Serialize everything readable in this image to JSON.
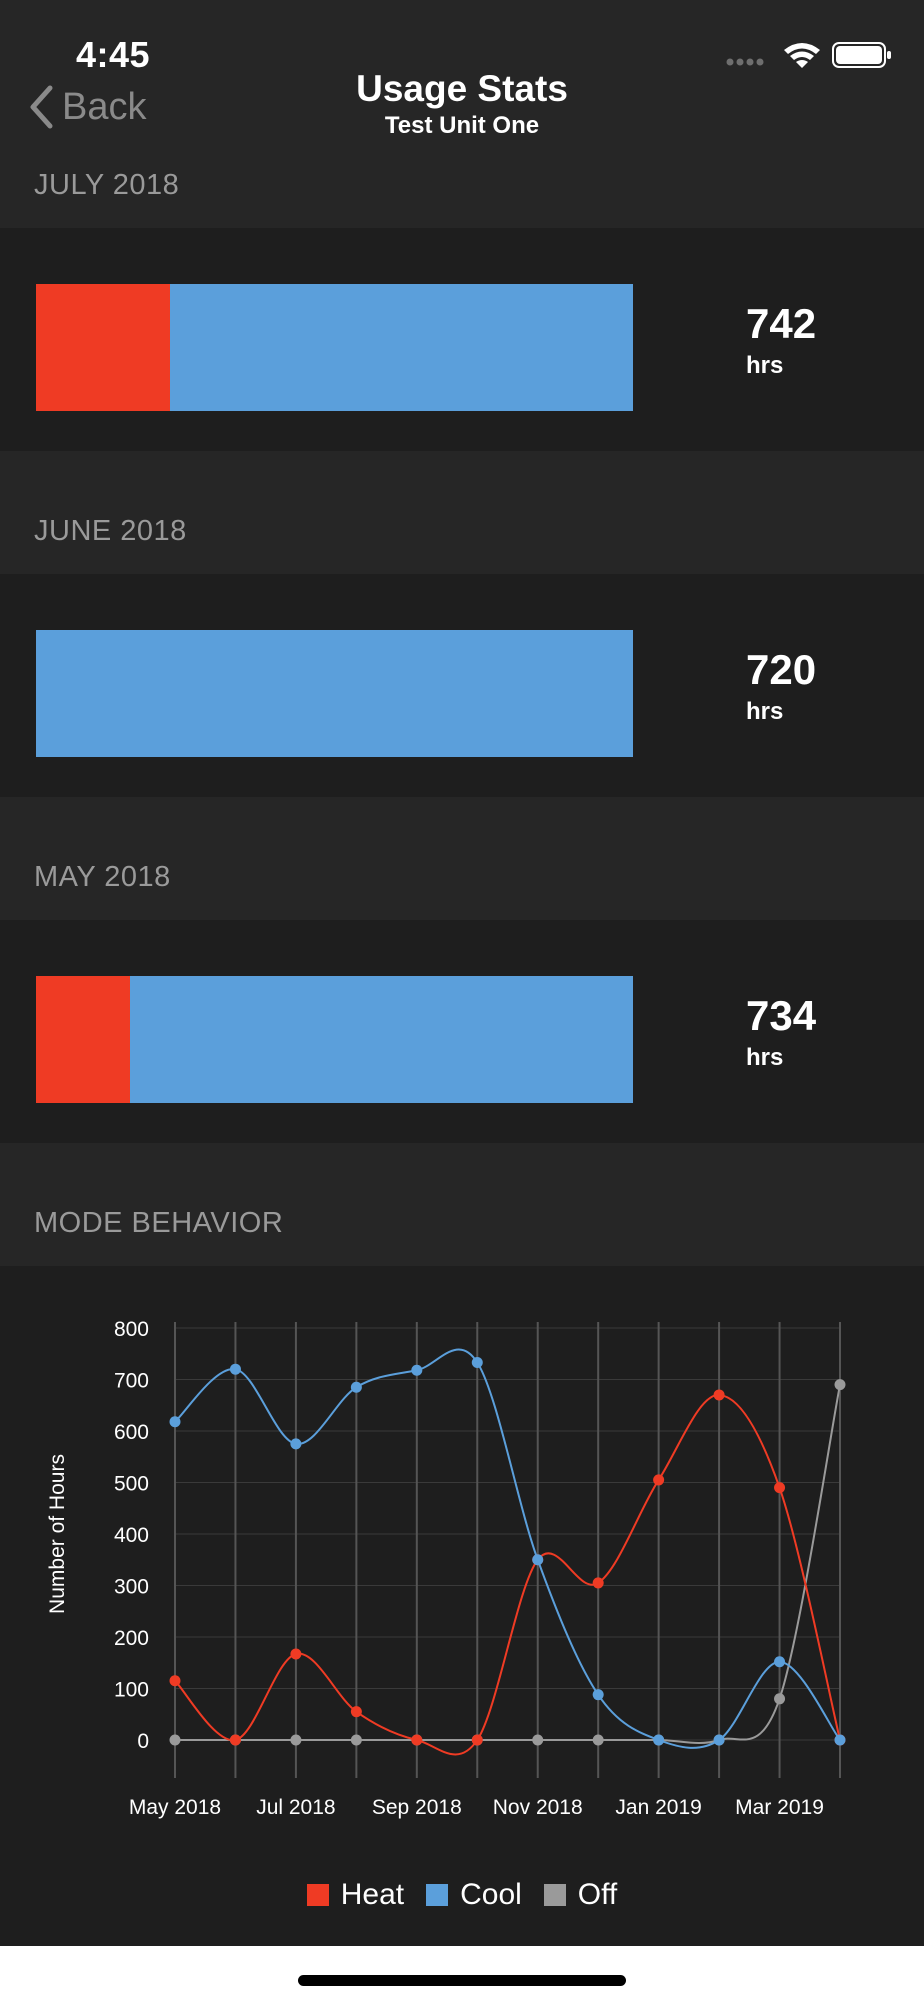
{
  "status_bar": {
    "time": "4:45"
  },
  "nav": {
    "back_label": "Back",
    "title": "Usage Stats",
    "subtitle": "Test Unit One"
  },
  "colors": {
    "heat": "#ef3b24",
    "cool": "#5b9fdb",
    "off": "#9a9a9a"
  },
  "months": [
    {
      "label": "JULY 2018",
      "total": "742",
      "unit": "hrs",
      "heat_fraction": 0.225
    },
    {
      "label": "JUNE 2018",
      "total": "720",
      "unit": "hrs",
      "heat_fraction": 0.0
    },
    {
      "label": "MAY 2018",
      "total": "734",
      "unit": "hrs",
      "heat_fraction": 0.157
    }
  ],
  "mode_behavior_header": "MODE BEHAVIOR",
  "chart_data": {
    "type": "line",
    "x": [
      "May 2018",
      "Jun 2018",
      "Jul 2018",
      "Aug 2018",
      "Sep 2018",
      "Oct 2018",
      "Nov 2018",
      "Dec 2018",
      "Jan 2019",
      "Feb 2019",
      "Mar 2019",
      "Apr 2019"
    ],
    "tick_labels": [
      "May 2018",
      "Jul 2018",
      "Sep 2018",
      "Nov 2018",
      "Jan 2019",
      "Mar 2019"
    ],
    "ylabel": "Number of Hours",
    "xlabel": "",
    "ylim": [
      0,
      800
    ],
    "yticks": [
      0,
      100,
      200,
      300,
      400,
      500,
      600,
      700,
      800
    ],
    "grid": true,
    "legend_position": "bottom",
    "series": [
      {
        "name": "Heat",
        "color": "#ef3b24",
        "values": [
          115,
          0,
          167,
          55,
          0,
          0,
          350,
          305,
          505,
          670,
          490,
          0
        ]
      },
      {
        "name": "Cool",
        "color": "#5b9fdb",
        "values": [
          618,
          720,
          575,
          685,
          718,
          733,
          350,
          88,
          0,
          0,
          152,
          0
        ]
      },
      {
        "name": "Off",
        "color": "#9a9a9a",
        "values": [
          0,
          0,
          0,
          0,
          0,
          0,
          0,
          0,
          0,
          0,
          80,
          690
        ]
      }
    ]
  }
}
